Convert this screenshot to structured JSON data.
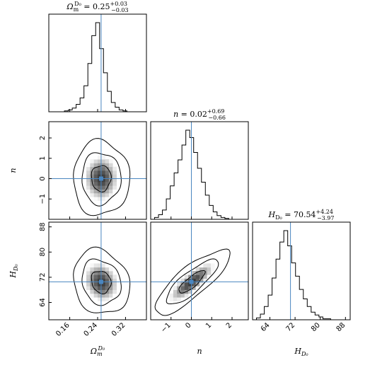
{
  "chart_data": {
    "type": "corner",
    "parameters": [
      {
        "key": "om",
        "label": "Ω",
        "sub": "m",
        "sup": "D₀",
        "range": [
          0.1,
          0.38
        ],
        "ticks": [
          0.16,
          0.24,
          0.32
        ],
        "tick_labels": [
          "0.16",
          "0.24",
          "0.32"
        ],
        "truth": 0.25
      },
      {
        "key": "n",
        "label": "n",
        "sub": "",
        "sup": "",
        "range": [
          -2.0,
          2.8
        ],
        "ticks": [
          -1,
          0,
          1,
          2
        ],
        "tick_labels": [
          "−1",
          "0",
          "1",
          "2"
        ],
        "truth": 0.0
      },
      {
        "key": "h",
        "label": "H",
        "sub": "D₀",
        "sup": "",
        "range": [
          58.5,
          89.5
        ],
        "ticks": [
          64,
          72,
          80,
          88
        ],
        "tick_labels": [
          "64",
          "72",
          "80",
          "88"
        ],
        "truth": 70.54
      }
    ],
    "titles": [
      {
        "name": "Ω",
        "sub": "m",
        "sup": "D₀",
        "value": "= 0.25",
        "plus": "+0.03",
        "minus": "−0.03"
      },
      {
        "name": "n",
        "sub": "",
        "sup": "",
        "value": "= 0.02",
        "plus": "+0.69",
        "minus": "−0.66"
      },
      {
        "name": "H",
        "sub": "D₀",
        "sup": "",
        "value": "= 70.54",
        "plus": "+4.24",
        "minus": "−3.97"
      }
    ],
    "hist_om": [
      0,
      0,
      0,
      0,
      1,
      2,
      4,
      8,
      15,
      28,
      52,
      82,
      96,
      68,
      42,
      22,
      10,
      5,
      2,
      1,
      0,
      0,
      0,
      0,
      0
    ],
    "hist_n": [
      0,
      2,
      5,
      10,
      22,
      36,
      50,
      64,
      80,
      96,
      88,
      72,
      55,
      40,
      26,
      15,
      8,
      4,
      2,
      1,
      0,
      0,
      0,
      0,
      0
    ],
    "hist_h": [
      0,
      2,
      6,
      14,
      26,
      44,
      64,
      82,
      94,
      78,
      60,
      46,
      32,
      22,
      14,
      8,
      5,
      3,
      1,
      1,
      0,
      0,
      0,
      0,
      0
    ],
    "colors": {
      "truth_line": "#4a86c0",
      "hist": "#000000",
      "contour": "#000000"
    }
  }
}
